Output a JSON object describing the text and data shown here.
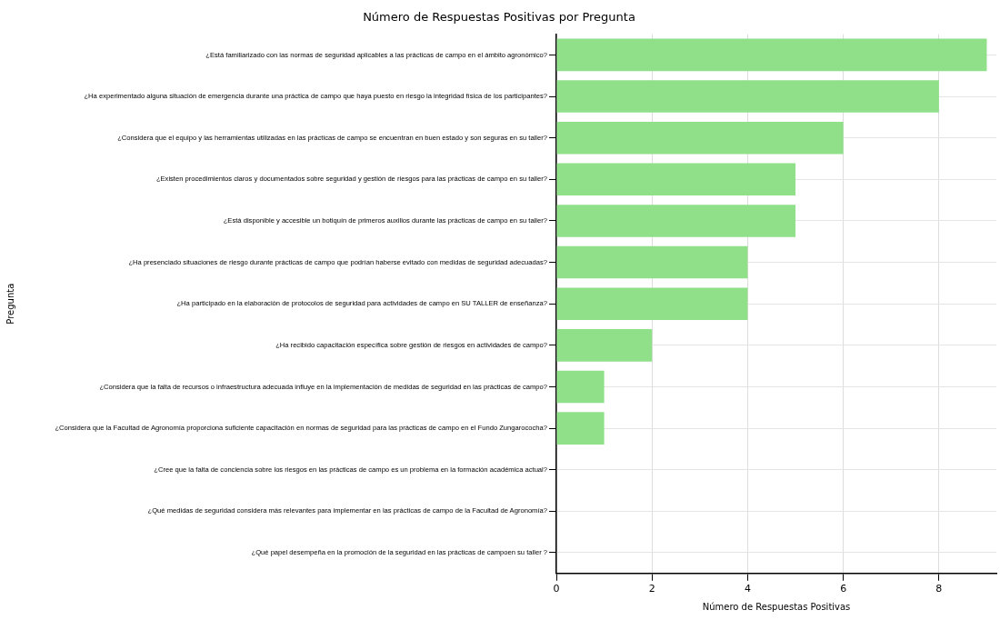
{
  "chart_data": {
    "type": "bar",
    "orientation": "horizontal",
    "title": "Número de Respuestas Positivas por Pregunta",
    "xlabel": "Número de Respuestas Positivas",
    "ylabel": "Pregunta",
    "categories": [
      "¿Está familiarizado con las normas de seguridad aplicables a las prácticas de campo en el ámbito agronómico?",
      "¿Ha experimentado alguna situación de emergencia durante una práctica de campo que haya puesto en riesgo la integridad física de los participantes?",
      "¿Considera que el equipo y las herramientas utilizadas en las prácticas de campo se encuentran en buen estado y son seguras en su taller?",
      "¿Existen procedimientos claros y documentados sobre seguridad y gestión de riesgos para las prácticas de campo en su taller?",
      "¿Está disponible y accesible un botiquín de primeros auxilios durante las prácticas de campo en su taller?",
      "¿Ha presenciado situaciones de riesgo durante prácticas de campo que podrían haberse evitado con medidas de seguridad adecuadas?",
      "¿Ha participado en la elaboración de protocolos de seguridad para actividades de campo en SU TALLER de enseñanza?",
      "¿Ha recibido capacitación específica sobre gestión de riesgos en actividades de campo?",
      "¿Considera que la falta de recursos o infraestructura adecuada influye en la implementación de medidas de seguridad en las prácticas de campo?",
      "¿Considera que la Facultad de Agronomía proporciona suficiente capacitación en normas de seguridad para las prácticas de campo en el Fundo Zungarococha?",
      "¿Cree que la falta de conciencia sobre los riesgos en las prácticas de campo es un problema en la formación académica actual?",
      "¿Qué medidas de seguridad considera más relevantes para implementar en las prácticas de campo de la Facultad de Agronomía?",
      "¿Qué papel desempeña en la promoción de la seguridad en las prácticas de campoen su taller ?"
    ],
    "values": [
      9,
      8,
      6,
      5,
      5,
      4,
      4,
      2,
      1,
      1,
      0,
      0,
      0
    ],
    "color": "#90e08a",
    "xlim": [
      0,
      9.2
    ],
    "xticks": [
      0,
      2,
      4,
      6,
      8
    ],
    "grid": true
  }
}
